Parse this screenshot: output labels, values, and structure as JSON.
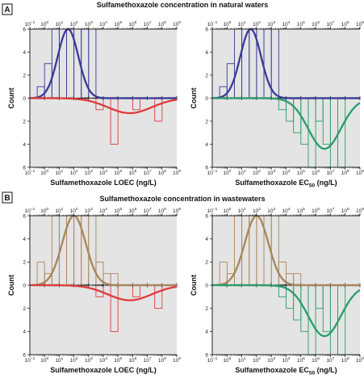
{
  "figure": {
    "panels": [
      {
        "letter": "A",
        "title": "Sulfamethoxazole concentration in natural waters"
      },
      {
        "letter": "B",
        "title": "Sulfamethoxazole concentration in wastewaters"
      }
    ],
    "xlabel_left": "Sulfamethoxazole LOEC (ng/L)",
    "xlabel_right_prefix": "Sulfamethoxazole EC",
    "xlabel_right_sub": "50",
    "xlabel_right_suffix": " (ng/L)",
    "ylabel": "Count",
    "colors": {
      "background": "#e4e4e4",
      "natural_concentration": "#3a3a98",
      "wastewater_concentration": "#a8855a",
      "loec": "#dd3b3b",
      "ec50": "#2a9c6a",
      "axis": "#222222"
    }
  },
  "chart_data": [
    {
      "type": "bar",
      "panel": "A",
      "position": "left",
      "title": "Sulfamethoxazole concentration in natural waters",
      "xlabel": "Sulfamethoxazole LOEC (ng/L)",
      "ylabel": "Count",
      "x_scale": "log10",
      "xlim": [
        -1,
        9
      ],
      "x_ticks": [
        -1,
        0,
        1,
        2,
        3,
        4,
        5,
        6,
        7,
        8,
        9
      ],
      "y_ticks": [
        6,
        4,
        2,
        0,
        2,
        4,
        6
      ],
      "ylim_up": [
        0,
        6
      ],
      "ylim_down": [
        0,
        6
      ],
      "grid": false,
      "series": [
        {
          "direction": "up",
          "color": "#3a3a98",
          "bins_log10": [
            [
              -0.5,
              0
            ],
            [
              0,
              0.5
            ],
            [
              0.5,
              1
            ],
            [
              1,
              1.5
            ],
            [
              1.5,
              2
            ],
            [
              2,
              2.5
            ],
            [
              2.5,
              3
            ],
            [
              3,
              3.5
            ]
          ],
          "counts": [
            1,
            3,
            6,
            6,
            6,
            6,
            6,
            6
          ],
          "fit": {
            "mean_log10": 1.6,
            "sd_log10": 0.7,
            "peak": 6
          }
        },
        {
          "direction": "down",
          "color": "#dd3b3b",
          "bins_log10": [
            [
              3.5,
              4
            ],
            [
              4.5,
              5
            ],
            [
              6,
              6.5
            ],
            [
              7.5,
              8
            ]
          ],
          "counts": [
            1,
            4,
            1,
            2
          ],
          "fit": {
            "mean_log10": 5.8,
            "sd_log10": 1.5,
            "peak": 1.3
          }
        }
      ]
    },
    {
      "type": "bar",
      "panel": "A",
      "position": "right",
      "title": "Sulfamethoxazole concentration in natural waters",
      "xlabel": "Sulfamethoxazole EC50 (ng/L)",
      "ylabel": "Count",
      "x_scale": "log10",
      "xlim": [
        -1,
        9
      ],
      "x_ticks": [
        -1,
        0,
        1,
        2,
        3,
        4,
        5,
        6,
        7,
        8,
        9
      ],
      "y_ticks": [
        6,
        4,
        2,
        0,
        2,
        4,
        6
      ],
      "ylim_up": [
        0,
        6
      ],
      "ylim_down": [
        0,
        6
      ],
      "grid": false,
      "series": [
        {
          "direction": "up",
          "color": "#3a3a98",
          "bins_log10": [
            [
              -0.5,
              0
            ],
            [
              0,
              0.5
            ],
            [
              0.5,
              1
            ],
            [
              1,
              1.5
            ],
            [
              1.5,
              2
            ],
            [
              2,
              2.5
            ],
            [
              2.5,
              3
            ],
            [
              3,
              3.5
            ]
          ],
          "counts": [
            1,
            3,
            6,
            6,
            6,
            6,
            6,
            6
          ],
          "fit": {
            "mean_log10": 1.6,
            "sd_log10": 0.7,
            "peak": 6
          }
        },
        {
          "direction": "down",
          "color": "#2a9c6a",
          "bins_log10": [
            [
              3.5,
              4
            ],
            [
              4,
              4.5
            ],
            [
              4.5,
              5
            ],
            [
              5,
              5.5
            ],
            [
              5.5,
              6
            ],
            [
              6,
              6.5
            ],
            [
              6.5,
              7
            ],
            [
              7,
              7.5
            ],
            [
              7.5,
              8
            ]
          ],
          "counts": [
            1,
            2,
            3,
            4,
            6,
            2,
            4,
            6,
            6
          ],
          "fit": {
            "mean_log10": 6.6,
            "sd_log10": 1.1,
            "peak": 4.4
          }
        }
      ]
    },
    {
      "type": "bar",
      "panel": "B",
      "position": "left",
      "title": "Sulfamethoxazole concentration in wastewaters",
      "xlabel": "Sulfamethoxazole LOEC (ng/L)",
      "ylabel": "Count",
      "x_scale": "log10",
      "xlim": [
        -1,
        9
      ],
      "x_ticks": [
        -1,
        0,
        1,
        2,
        3,
        4,
        5,
        6,
        7,
        8,
        9
      ],
      "y_ticks": [
        6,
        4,
        2,
        0,
        2,
        4,
        6
      ],
      "ylim_up": [
        0,
        6
      ],
      "ylim_down": [
        0,
        6
      ],
      "grid": false,
      "series": [
        {
          "direction": "up",
          "color": "#a8855a",
          "bins_log10": [
            [
              -0.5,
              0
            ],
            [
              0,
              0.5
            ],
            [
              0.5,
              1
            ],
            [
              1,
              1.5
            ],
            [
              1.5,
              2
            ],
            [
              2,
              2.5
            ],
            [
              2.5,
              3
            ],
            [
              3,
              3.5
            ],
            [
              3.5,
              4
            ],
            [
              4,
              4.5
            ],
            [
              4.5,
              5
            ]
          ],
          "counts": [
            2,
            1,
            6,
            6,
            6,
            6,
            6,
            6,
            2,
            1,
            1
          ],
          "fit": {
            "mean_log10": 2.0,
            "sd_log10": 0.8,
            "peak": 6
          }
        },
        {
          "direction": "down",
          "color": "#dd3b3b",
          "bins_log10": [
            [
              3.5,
              4
            ],
            [
              4.5,
              5
            ],
            [
              6,
              6.5
            ],
            [
              7.5,
              8
            ]
          ],
          "counts": [
            1,
            4,
            1,
            2
          ],
          "fit": {
            "mean_log10": 5.8,
            "sd_log10": 1.5,
            "peak": 1.3
          }
        }
      ]
    },
    {
      "type": "bar",
      "panel": "B",
      "position": "right",
      "title": "Sulfamethoxazole concentration in wastewaters",
      "xlabel": "Sulfamethoxazole EC50 (ng/L)",
      "ylabel": "Count",
      "x_scale": "log10",
      "xlim": [
        -1,
        9
      ],
      "x_ticks": [
        -1,
        0,
        1,
        2,
        3,
        4,
        5,
        6,
        7,
        8,
        9
      ],
      "y_ticks": [
        6,
        4,
        2,
        0,
        2,
        4,
        6
      ],
      "ylim_up": [
        0,
        6
      ],
      "ylim_down": [
        0,
        6
      ],
      "grid": false,
      "series": [
        {
          "direction": "up",
          "color": "#a8855a",
          "bins_log10": [
            [
              -0.5,
              0
            ],
            [
              0,
              0.5
            ],
            [
              0.5,
              1
            ],
            [
              1,
              1.5
            ],
            [
              1.5,
              2
            ],
            [
              2,
              2.5
            ],
            [
              2.5,
              3
            ],
            [
              3,
              3.5
            ],
            [
              3.5,
              4
            ],
            [
              4,
              4.5
            ],
            [
              4.5,
              5
            ]
          ],
          "counts": [
            2,
            1,
            6,
            6,
            6,
            6,
            6,
            6,
            2,
            1,
            1
          ],
          "fit": {
            "mean_log10": 2.0,
            "sd_log10": 0.8,
            "peak": 6
          }
        },
        {
          "direction": "down",
          "color": "#2a9c6a",
          "bins_log10": [
            [
              3.5,
              4
            ],
            [
              4,
              4.5
            ],
            [
              4.5,
              5
            ],
            [
              5,
              5.5
            ],
            [
              5.5,
              6
            ],
            [
              6,
              6.5
            ],
            [
              6.5,
              7
            ],
            [
              7,
              7.5
            ],
            [
              7.5,
              8
            ]
          ],
          "counts": [
            1,
            2,
            3,
            4,
            6,
            2,
            4,
            6,
            6
          ],
          "fit": {
            "mean_log10": 6.6,
            "sd_log10": 1.1,
            "peak": 4.4
          }
        }
      ]
    }
  ]
}
